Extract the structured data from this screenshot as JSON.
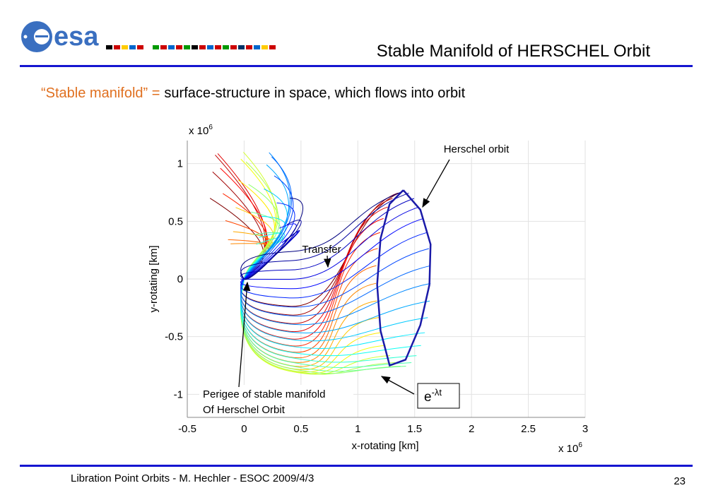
{
  "header": {
    "logo": "esa",
    "title": "Stable Manifold of HERSCHEL Orbit"
  },
  "subtitle": {
    "term": "“Stable manifold”  =",
    "definition": "surface-structure in space, which flows into orbit"
  },
  "chart_data": {
    "type": "line",
    "x_label": "x-rotating [km]",
    "y_label": "y-rotating [km]",
    "x_multiplier": {
      "base": "x 10",
      "exponent": "6"
    },
    "y_multiplier": {
      "base": "x 10",
      "exponent": "6"
    },
    "xlim": [
      -0.5,
      3
    ],
    "ylim": [
      -1.2,
      1.2
    ],
    "xticks": [
      -0.5,
      0,
      0.5,
      1,
      1.5,
      2,
      2.5,
      3
    ],
    "yticks": [
      -1,
      -0.5,
      0,
      0.5,
      1
    ],
    "grid": true,
    "orbit": {
      "color": "#1a1aa8",
      "x": [
        1.4,
        1.55,
        1.64,
        1.63,
        1.55,
        1.42,
        1.28,
        1.2,
        1.17,
        1.2,
        1.28,
        1.4
      ],
      "y": [
        0.77,
        0.6,
        0.3,
        -0.05,
        -0.4,
        -0.7,
        -0.75,
        -0.45,
        -0.05,
        0.35,
        0.65,
        0.77
      ]
    },
    "annotations": {
      "herschel_orbit": "Herschel orbit",
      "transfer": "Transfer",
      "perigee": [
        "Perigee of stable manifold",
        "Of Herschel Orbit"
      ],
      "decay": {
        "base": "e",
        "exponent": "-λt"
      }
    }
  },
  "footer": {
    "text": "Libration Point Orbits -  M. Hechler - ESOC 2009/4/3",
    "page": "23"
  }
}
